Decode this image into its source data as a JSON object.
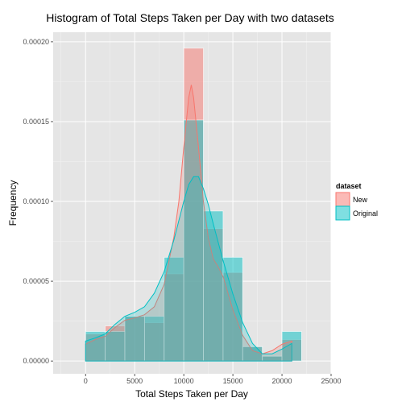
{
  "chart_data": {
    "type": "histogram",
    "title": "Histogram of Total Steps Taken per Day with two datasets",
    "xlabel": "Total Steps Taken per Day",
    "ylabel": "Frequency",
    "xlim": [
      -3300,
      25000
    ],
    "ylim": [
      -8e-06,
      0.000206
    ],
    "x_ticks": [
      0,
      5000,
      10000,
      15000,
      20000,
      25000
    ],
    "x_tick_labels": [
      "0",
      "5000",
      "10000",
      "15000",
      "20000",
      "25000"
    ],
    "y_ticks": [
      0,
      5e-05,
      0.0001,
      0.00015,
      0.0002
    ],
    "y_tick_labels": [
      "0.00000",
      "0.00005",
      "0.00010",
      "0.00015",
      "0.00020"
    ],
    "grid": true,
    "legend": {
      "title": "dataset",
      "position": "right",
      "entries": [
        {
          "label": "New",
          "fill": "#f8766d",
          "line": "#f8766d"
        },
        {
          "label": "Original",
          "fill": "#00bfc4",
          "line": "#00bfc4"
        }
      ]
    },
    "bin_width": 2000,
    "bins": [
      {
        "x0": 0,
        "new": 1.7e-05,
        "original": 1.85e-05
      },
      {
        "x0": 2000,
        "new": 2.2e-05,
        "original": 1.85e-05
      },
      {
        "x0": 4000,
        "new": 2.8e-05,
        "original": 2.8e-05
      },
      {
        "x0": 6000,
        "new": 2.4e-05,
        "original": 2.8e-05
      },
      {
        "x0": 8000,
        "new": 5.46e-05,
        "original": 6.5e-05
      },
      {
        "x0": 10000,
        "new": 0.000196,
        "original": 0.000151
      },
      {
        "x0": 12000,
        "new": 8.3e-05,
        "original": 9.4e-05
      },
      {
        "x0": 14000,
        "new": 5.55e-05,
        "original": 6.5e-05
      },
      {
        "x0": 16000,
        "new": 9e-06,
        "original": 9e-06
      },
      {
        "x0": 18000,
        "new": 3e-06,
        "original": 3e-06
      },
      {
        "x0": 20000,
        "new": 1.35e-05,
        "original": 1.85e-05
      }
    ],
    "density": {
      "new": {
        "name": "New",
        "x": [
          0,
          1000,
          2000,
          3000,
          4000,
          5000,
          6000,
          7000,
          8000,
          9000,
          9500,
          10000,
          10500,
          10766,
          11000,
          11500,
          12000,
          12500,
          13000,
          13500,
          14000,
          15000,
          16000,
          17000,
          18000,
          19000,
          20000,
          21000
        ],
        "y": [
          1.05e-05,
          1.35e-05,
          1.55e-05,
          2.1e-05,
          2.55e-05,
          2.7e-05,
          2.9e-05,
          3.4e-05,
          4.8e-05,
          7.8e-05,
          0.0001,
          0.000134,
          0.000165,
          0.000173,
          0.000165,
          0.000134,
          0.0001,
          7.7e-05,
          6.4e-05,
          5.9e-05,
          5.3e-05,
          3.2e-05,
          1.6e-05,
          6.5e-06,
          4.5e-06,
          6.5e-06,
          1.05e-05,
          1.25e-05
        ]
      },
      "original": {
        "name": "Original",
        "x": [
          0,
          1000,
          2000,
          3000,
          4000,
          5000,
          6000,
          7000,
          8000,
          9000,
          9500,
          10000,
          10500,
          11000,
          11500,
          12000,
          12500,
          13000,
          14000,
          15000,
          16000,
          17000,
          18000,
          19000,
          20000,
          21000
        ],
        "y": [
          1.25e-05,
          1.45e-05,
          1.7e-05,
          2.3e-05,
          2.8e-05,
          3.05e-05,
          3.4e-05,
          4.25e-05,
          5.6e-05,
          7.6e-05,
          8.8e-05,
          0.0001,
          0.0001105,
          0.0001155,
          0.0001155,
          0.000108,
          9.8e-05,
          8.6e-05,
          6.3e-05,
          4.2e-05,
          2.4e-05,
          1.1e-05,
          4.5e-06,
          4.5e-06,
          7.5e-06,
          1.1e-05
        ]
      }
    }
  }
}
